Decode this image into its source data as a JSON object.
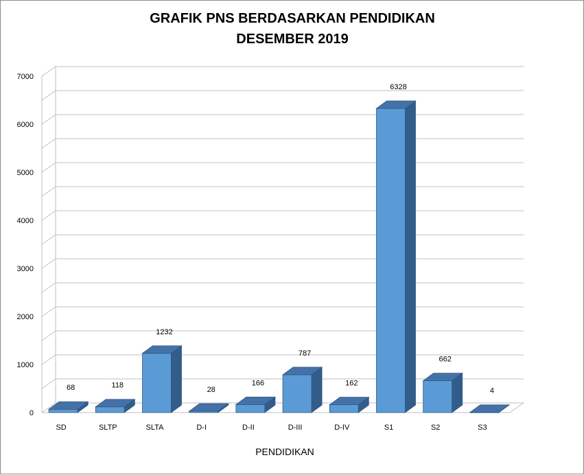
{
  "chart_data": {
    "type": "bar",
    "title": "GRAFIK PNS BERDASARKAN PENDIDIKAN",
    "subtitle": "DESEMBER 2019",
    "xlabel": "PENDIDIKAN",
    "ylabel": "",
    "categories": [
      "SD",
      "SLTP",
      "SLTA",
      "D-I",
      "D-II",
      "D-III",
      "D-IV",
      "S1",
      "S2",
      "S3"
    ],
    "values": [
      68,
      118,
      1232,
      28,
      166,
      787,
      162,
      6328,
      662,
      4
    ],
    "data_labels": [
      "68",
      "118",
      "1232",
      "28",
      "166",
      "787",
      "162",
      "6328",
      "662",
      "4"
    ],
    "ylim": [
      0,
      7000
    ],
    "yticks": [
      "0",
      "1000",
      "2000",
      "3000",
      "4000",
      "5000",
      "6000",
      "7000"
    ],
    "grid": true,
    "legend": "none",
    "style": "3d-column",
    "colors": {
      "bar_front": "#5b9bd5",
      "bar_top": "#4472a8",
      "bar_side": "#325d8a",
      "bar_edge": "#2e5782",
      "gridline": "#bfbfbf"
    }
  }
}
